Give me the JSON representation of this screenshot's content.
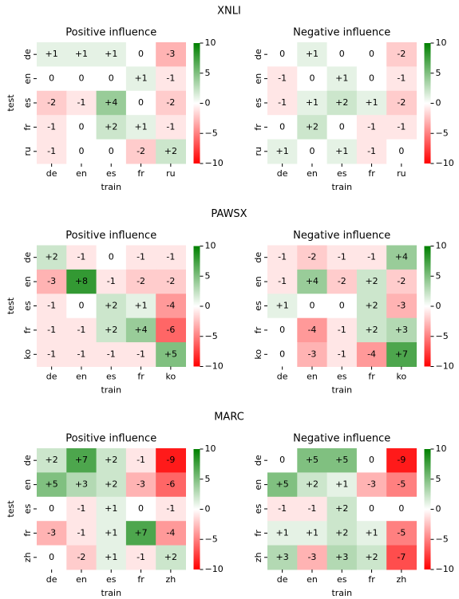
{
  "chart_data": [
    {
      "type": "heatmap",
      "title": "XNLI",
      "cmap": [
        "#ff0000",
        "#ffffff",
        "#008000"
      ],
      "clim": [
        -10,
        10
      ],
      "panels": [
        {
          "title": "Positive influence",
          "xlabel": "train",
          "ylabel": "test",
          "xcategories": [
            "de",
            "en",
            "es",
            "fr",
            "ru"
          ],
          "ycategories": [
            "de",
            "en",
            "es",
            "fr",
            "ru"
          ],
          "values": [
            [
              1,
              1,
              1,
              0,
              -3
            ],
            [
              0,
              0,
              0,
              1,
              -1
            ],
            [
              -2,
              -1,
              4,
              0,
              -2
            ],
            [
              -1,
              0,
              2,
              1,
              -1
            ],
            [
              -1,
              0,
              0,
              -2,
              2
            ]
          ],
          "value_labels": [
            [
              "+1",
              "+1",
              "+1",
              "0",
              "-3"
            ],
            [
              "0",
              "0",
              "0",
              "+1",
              "-1"
            ],
            [
              "-2",
              "-1",
              "+4",
              "0",
              "-2"
            ],
            [
              "-1",
              "0",
              "+2",
              "+1",
              "-1"
            ],
            [
              "-1",
              "0",
              "0",
              "-2",
              "+2"
            ]
          ],
          "cticks": [
            10,
            5,
            0,
            {
              "value": -5,
              "label": "−5"
            },
            {
              "value": -10,
              "label": "−10"
            }
          ]
        },
        {
          "title": "Negative influence",
          "xlabel": "train",
          "xcategories": [
            "de",
            "en",
            "es",
            "fr",
            "ru"
          ],
          "ycategories": [
            "de",
            "en",
            "es",
            "fr",
            "ru"
          ],
          "values": [
            [
              0,
              1,
              0,
              0,
              -2
            ],
            [
              -1,
              0,
              1,
              0,
              -1
            ],
            [
              -1,
              1,
              2,
              1,
              -2
            ],
            [
              0,
              2,
              0,
              -1,
              -1
            ],
            [
              1,
              0,
              1,
              -1,
              0
            ]
          ],
          "value_labels": [
            [
              "0",
              "+1",
              "0",
              "0",
              "-2"
            ],
            [
              "-1",
              "0",
              "+1",
              "0",
              "-1"
            ],
            [
              "-1",
              "+1",
              "+2",
              "+1",
              "-2"
            ],
            [
              "0",
              "+2",
              "0",
              "-1",
              "-1"
            ],
            [
              "+1",
              "0",
              "+1",
              "-1",
              "0"
            ]
          ],
          "cticks": [
            10,
            5,
            0,
            {
              "value": -5,
              "label": "−5"
            },
            {
              "value": -10,
              "label": "−10"
            }
          ]
        }
      ]
    },
    {
      "type": "heatmap",
      "title": "PAWSX",
      "cmap": [
        "#ff0000",
        "#ffffff",
        "#008000"
      ],
      "clim": [
        -10,
        10
      ],
      "panels": [
        {
          "title": "Positive influence",
          "xlabel": "train",
          "ylabel": "test",
          "xcategories": [
            "de",
            "en",
            "es",
            "fr",
            "ko"
          ],
          "ycategories": [
            "de",
            "en",
            "es",
            "fr",
            "ko"
          ],
          "values": [
            [
              2,
              -1,
              0,
              -1,
              -1
            ],
            [
              -3,
              8,
              -1,
              -2,
              -2
            ],
            [
              -1,
              0,
              2,
              1,
              -4
            ],
            [
              -1,
              -1,
              2,
              4,
              -6
            ],
            [
              -1,
              -1,
              -1,
              -1,
              5
            ]
          ],
          "value_labels": [
            [
              "+2",
              "-1",
              "0",
              "-1",
              "-1"
            ],
            [
              "-3",
              "+8",
              "-1",
              "-2",
              "-2"
            ],
            [
              "-1",
              "0",
              "+2",
              "+1",
              "-4"
            ],
            [
              "-1",
              "-1",
              "+2",
              "+4",
              "-6"
            ],
            [
              "-1",
              "-1",
              "-1",
              "-1",
              "+5"
            ]
          ],
          "cticks": [
            10,
            5,
            0,
            {
              "value": -5,
              "label": "−5"
            },
            {
              "value": -10,
              "label": "−10"
            }
          ]
        },
        {
          "title": "Negative influence",
          "xlabel": "train",
          "xcategories": [
            "de",
            "en",
            "es",
            "fr",
            "ko"
          ],
          "ycategories": [
            "de",
            "en",
            "es",
            "fr",
            "ko"
          ],
          "values": [
            [
              -1,
              -2,
              -1,
              -1,
              4
            ],
            [
              -1,
              4,
              -2,
              2,
              -2
            ],
            [
              1,
              0,
              0,
              2,
              -3
            ],
            [
              0,
              -4,
              -1,
              2,
              3
            ],
            [
              0,
              -3,
              -1,
              -4,
              7
            ]
          ],
          "value_labels": [
            [
              "-1",
              "-2",
              "-1",
              "-1",
              "+4"
            ],
            [
              "-1",
              "+4",
              "-2",
              "+2",
              "-2"
            ],
            [
              "+1",
              "0",
              "0",
              "+2",
              "-3"
            ],
            [
              "0",
              "-4",
              "-1",
              "+2",
              "+3"
            ],
            [
              "0",
              "-3",
              "-1",
              "-4",
              "+7"
            ]
          ],
          "cticks": [
            10,
            5,
            0,
            {
              "value": -5,
              "label": "−5"
            },
            {
              "value": -10,
              "label": "−10"
            }
          ]
        }
      ]
    },
    {
      "type": "heatmap",
      "title": "MARC",
      "cmap": [
        "#ff0000",
        "#ffffff",
        "#008000"
      ],
      "clim": [
        -10,
        10
      ],
      "panels": [
        {
          "title": "Positive influence",
          "xlabel": "train",
          "ylabel": "test",
          "xcategories": [
            "de",
            "en",
            "es",
            "fr",
            "zh"
          ],
          "ycategories": [
            "de",
            "en",
            "es",
            "fr",
            "zh"
          ],
          "values": [
            [
              2,
              7,
              2,
              -1,
              -9
            ],
            [
              5,
              3,
              2,
              -3,
              -6
            ],
            [
              0,
              -1,
              1,
              0,
              -1
            ],
            [
              -3,
              -1,
              1,
              7,
              -4
            ],
            [
              0,
              -2,
              1,
              -1,
              2
            ]
          ],
          "value_labels": [
            [
              "+2",
              "+7",
              "+2",
              "-1",
              "-9"
            ],
            [
              "+5",
              "+3",
              "+2",
              "-3",
              "-6"
            ],
            [
              "0",
              "-1",
              "+1",
              "0",
              "-1"
            ],
            [
              "-3",
              "-1",
              "+1",
              "+7",
              "-4"
            ],
            [
              "0",
              "-2",
              "+1",
              "-1",
              "+2"
            ]
          ],
          "cticks": [
            10,
            5,
            0,
            {
              "value": -5,
              "label": "−5"
            },
            {
              "value": -10,
              "label": "−10"
            }
          ]
        },
        {
          "title": "Negative influence",
          "xlabel": "train",
          "xcategories": [
            "de",
            "en",
            "es",
            "fr",
            "zh"
          ],
          "ycategories": [
            "de",
            "en",
            "es",
            "fr",
            "zh"
          ],
          "values": [
            [
              0,
              5,
              5,
              0,
              -9
            ],
            [
              5,
              2,
              1,
              -3,
              -5
            ],
            [
              -1,
              -1,
              2,
              0,
              0
            ],
            [
              1,
              1,
              2,
              1,
              -5
            ],
            [
              3,
              -3,
              3,
              2,
              -7
            ]
          ],
          "value_labels": [
            [
              "0",
              "+5",
              "+5",
              "0",
              "-9"
            ],
            [
              "+5",
              "+2",
              "+1",
              "-3",
              "-5"
            ],
            [
              "-1",
              "-1",
              "+2",
              "0",
              "0"
            ],
            [
              "+1",
              "+1",
              "+2",
              "+1",
              "-5"
            ],
            [
              "+3",
              "-3",
              "+3",
              "+2",
              "-7"
            ]
          ],
          "cticks": [
            10,
            5,
            0,
            {
              "value": -5,
              "label": "−5"
            },
            {
              "value": -10,
              "label": "−10"
            }
          ]
        }
      ]
    }
  ]
}
